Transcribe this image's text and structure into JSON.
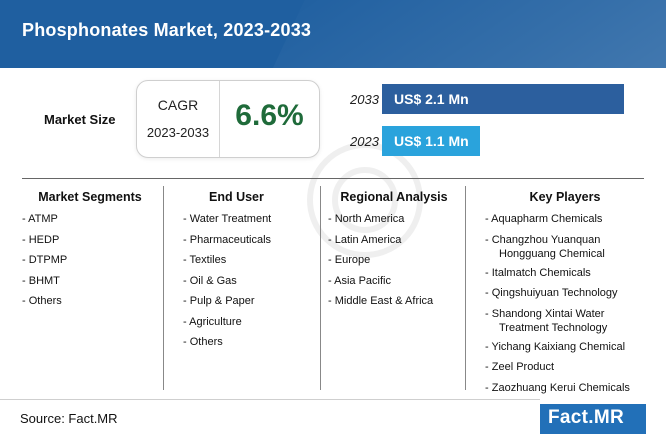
{
  "header": {
    "title": "Phosphonates Market, 2023-2033"
  },
  "market_size": {
    "label": "Market Size",
    "cagr_label": "CAGR",
    "cagr_period": "2023-2033",
    "cagr_value": "6.6%",
    "bars": [
      {
        "year": "2033",
        "value_label": "US$ 2.1 Mn",
        "value": 2.1,
        "color": "#2c5f9e"
      },
      {
        "year": "2023",
        "value_label": "US$ 1.1 Mn",
        "value": 1.1,
        "color": "#2aa3dc"
      }
    ]
  },
  "columns": {
    "segments": {
      "title": "Market Segments",
      "items": [
        "ATMP",
        "HEDP",
        "DTPMP",
        "BHMT",
        "Others"
      ]
    },
    "end_user": {
      "title": "End User",
      "items": [
        "Water Treatment",
        "Pharmaceuticals",
        "Textiles",
        "Oil & Gas",
        "Pulp & Paper",
        "Agriculture",
        "Others"
      ]
    },
    "regional": {
      "title": "Regional Analysis",
      "items": [
        "North America",
        "Latin America",
        "Europe",
        "Asia Pacific",
        "Middle East & Africa"
      ]
    },
    "players": {
      "title": "Key Players",
      "items": [
        {
          "line1": "Aquapharm Chemicals",
          "line2": ""
        },
        {
          "line1": "Changzhou Yuanquan",
          "line2": "Hongguang Chemical"
        },
        {
          "line1": "Italmatch Chemicals",
          "line2": ""
        },
        {
          "line1": "Qingshuiyuan Technology",
          "line2": ""
        },
        {
          "line1": "Shandong Xintai Water",
          "line2": "Treatment Technology"
        },
        {
          "line1": "Yichang Kaixiang Chemical",
          "line2": ""
        },
        {
          "line1": "Zeel Product",
          "line2": ""
        },
        {
          "line1": "Zaozhuang Kerui Chemicals",
          "line2": ""
        }
      ]
    }
  },
  "footer": {
    "source": "Source: Fact.MR",
    "logo": "Fact.MR"
  },
  "colors": {
    "header": "#1f5fa0",
    "cagr_value": "#1f6b3a",
    "bar_2033": "#2c5f9e",
    "bar_2023": "#2aa3dc",
    "logo": "#2270b8"
  }
}
